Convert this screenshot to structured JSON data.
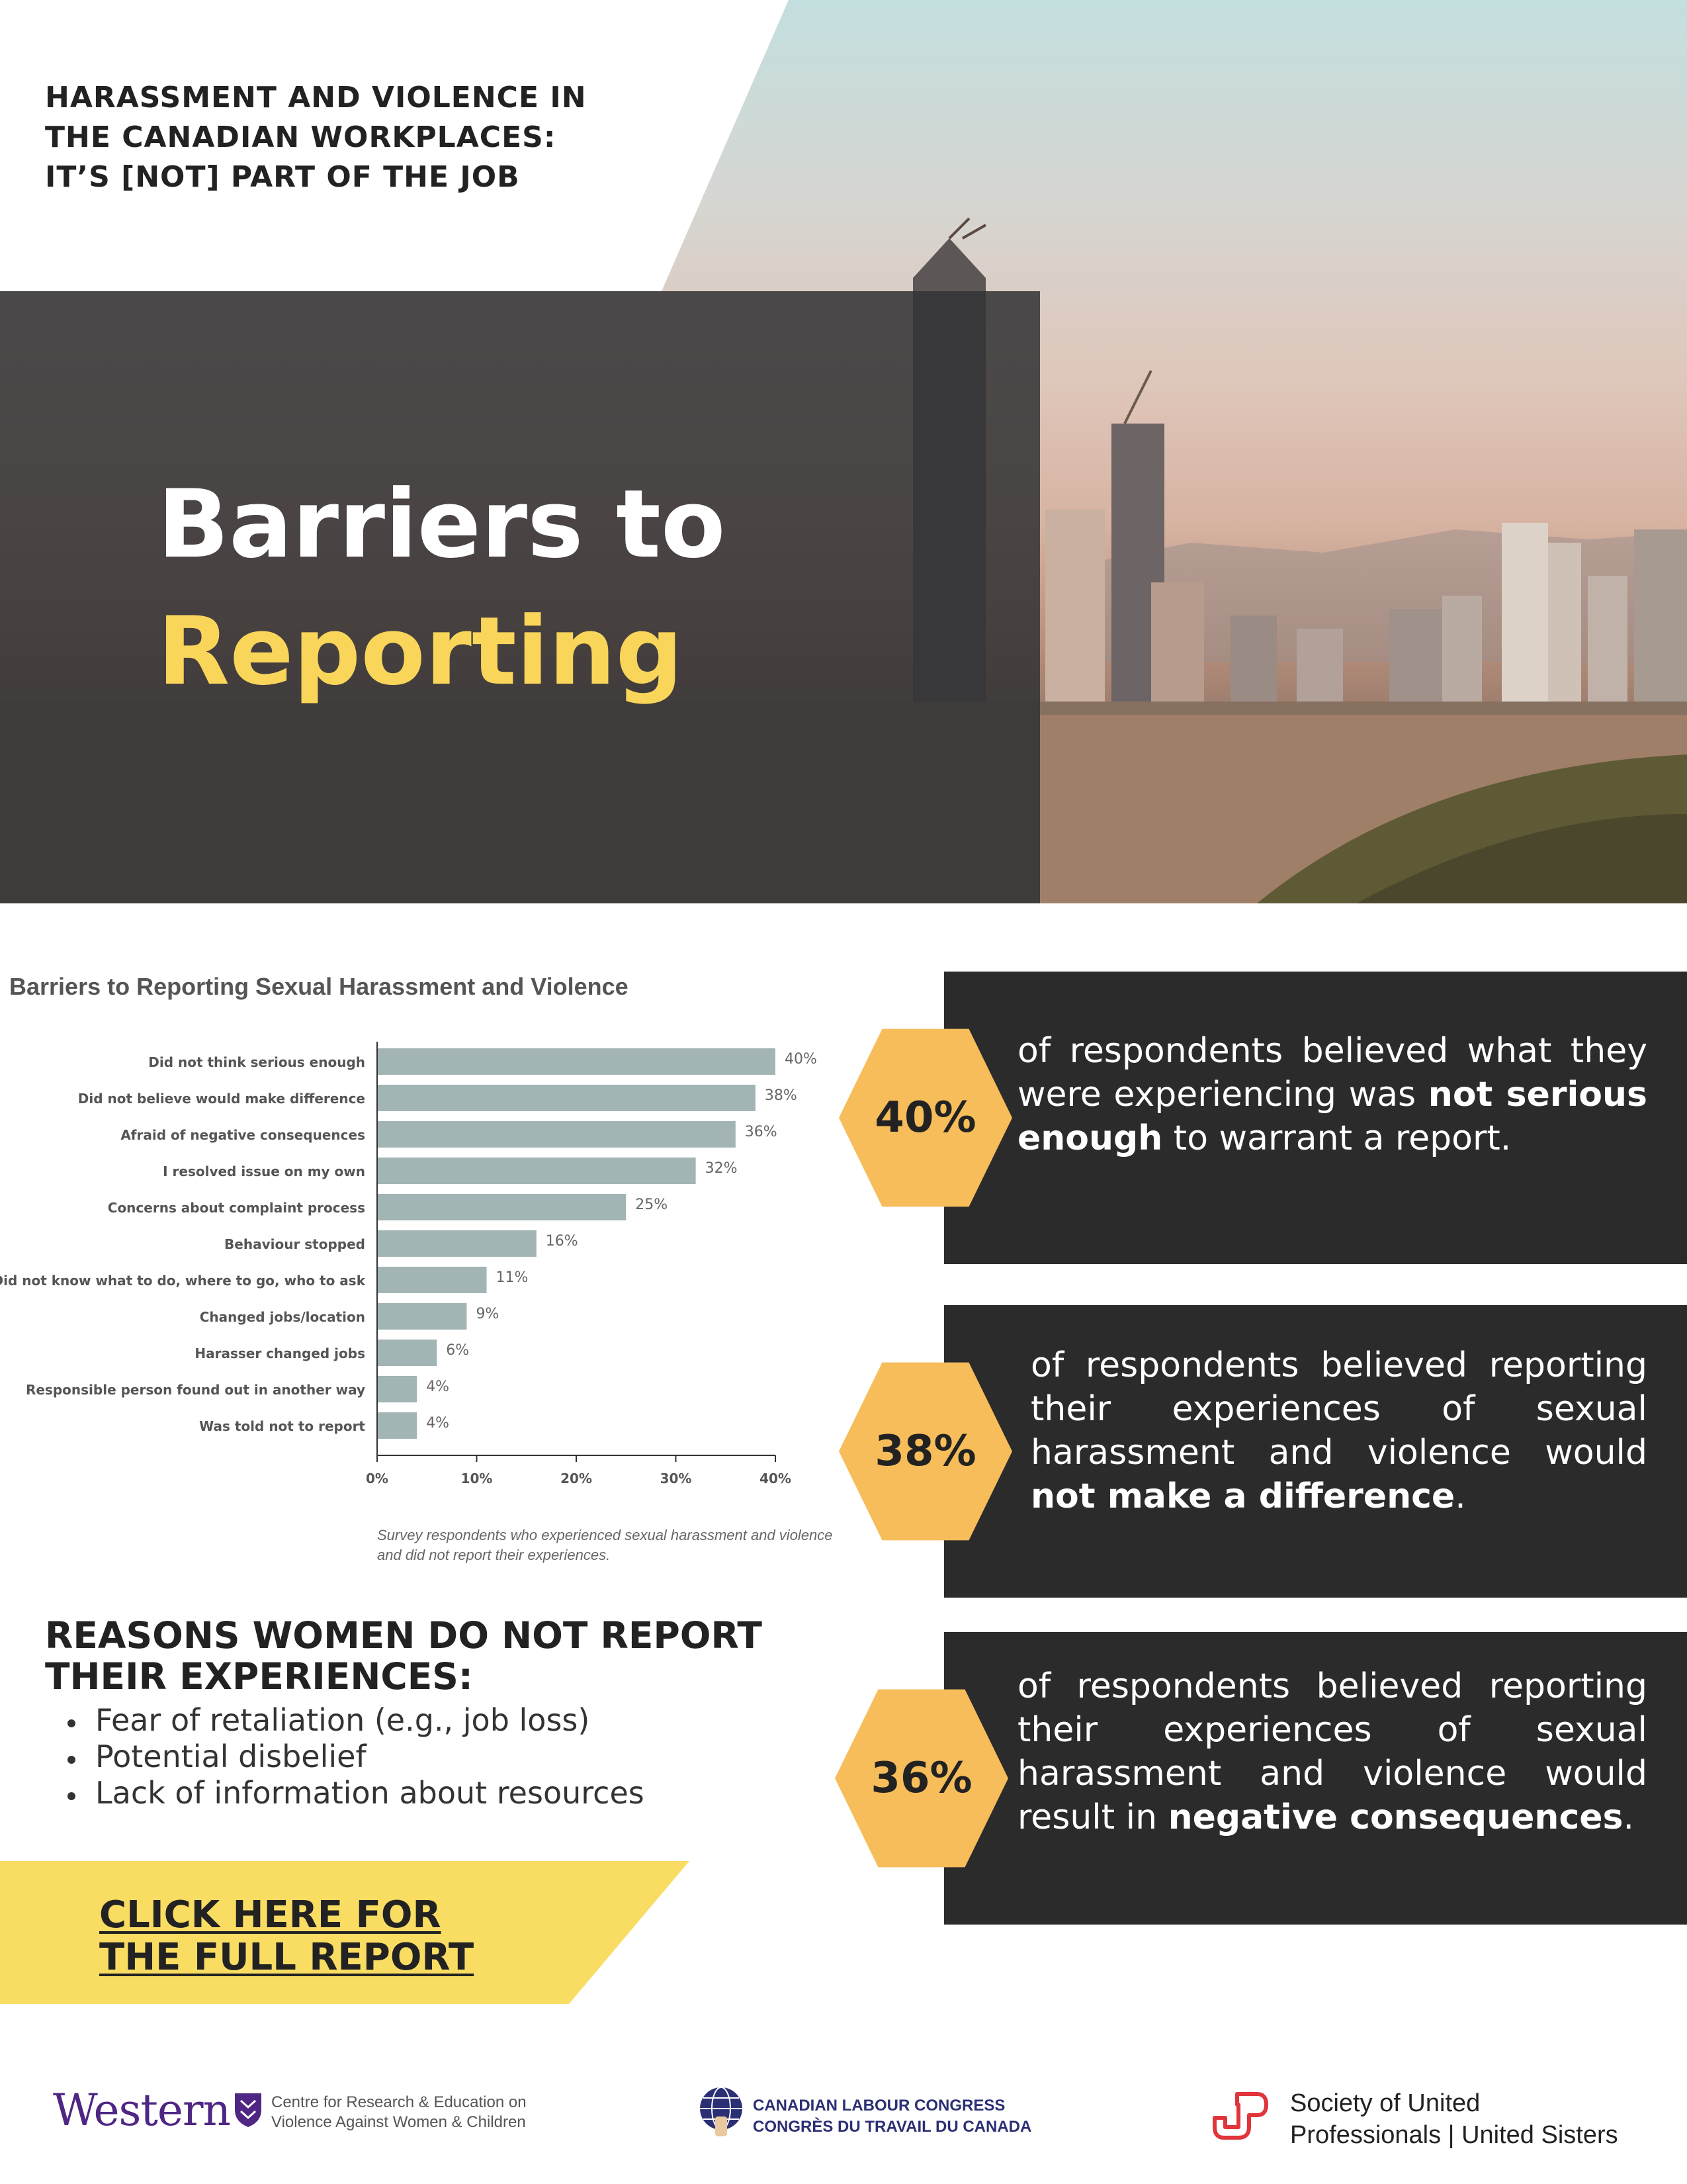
{
  "header": {
    "title_lines": [
      "HARASSMENT AND VIOLENCE IN",
      "THE CANADIAN WORKPLACES:",
      "IT’S [NOT] PART OF THE JOB"
    ]
  },
  "hero": {
    "line1": "Barriers to",
    "line2": "Reporting",
    "accent_color": "#f9d65a"
  },
  "chart_data": {
    "type": "bar",
    "orientation": "horizontal",
    "title": "Barriers to Reporting Sexual Harassment and Violence",
    "categories": [
      "Did not think serious enough",
      "Did not believe would make difference",
      "Afraid of negative consequences",
      "I resolved issue on my own",
      "Concerns about complaint process",
      "Behaviour stopped",
      "Did not know what to do, where to go, who to ask",
      "Changed jobs/location",
      "Harasser changed jobs",
      "Responsible person found out in another way",
      "Was told not to report"
    ],
    "values": [
      40,
      38,
      36,
      32,
      25,
      16,
      11,
      9,
      6,
      4,
      4
    ],
    "value_labels": [
      "40%",
      "38%",
      "36%",
      "32%",
      "25%",
      "16%",
      "11%",
      "9%",
      "6%",
      "4%",
      "4%"
    ],
    "xlim": [
      0,
      40
    ],
    "x_ticks": [
      "0%",
      "10%",
      "20%",
      "30%",
      "40%"
    ],
    "x_tick_values": [
      0,
      10,
      20,
      30,
      40
    ],
    "bar_color": "#a3b4b5",
    "grid": false,
    "caption": "Survey respondents who experienced sexual harassment and violence and did not report their experiences."
  },
  "reasons": {
    "title": "REASONS WOMEN DO NOT REPORT THEIR EXPERIENCES:",
    "items": [
      "Fear of retaliation (e.g., job loss)",
      "Potential disbelief",
      "Lack of information about resources"
    ]
  },
  "cta": {
    "line1": "CLICK HERE FOR",
    "line2": "THE FULL REPORT"
  },
  "stats": [
    {
      "percent": "40%",
      "pre": "of respondents believed what they were experiencing was ",
      "bold": "not serious enough",
      "post": " to warrant a report."
    },
    {
      "percent": "38%",
      "pre": "of respondents believed reporting their experiences of sexual harassment and violence would ",
      "bold": "not make a difference",
      "post": "."
    },
    {
      "percent": "36%",
      "pre": "of respondents believed reporting their experiences of sexual harassment and violence would result in ",
      "bold": "negative consequences",
      "post": "."
    }
  ],
  "footer": {
    "western_word": "Western",
    "western_desc": "Centre for Research & Education on Violence Against Women & Children",
    "clc_line1": "CANADIAN LABOUR CONGRESS",
    "clc_line2": "CONGRÈS DU TRAVAIL DU CANADA",
    "sup_line1": "Society of United",
    "sup_line2": "Professionals | United Sisters"
  },
  "colors": {
    "dark_panel": "#2b2b2b",
    "hexagon": "#f6bd5a",
    "cta_background": "#f9dd63",
    "western_purple": "#4f2683",
    "clc_navy": "#2b2f74",
    "sup_red": "#e0353b"
  }
}
